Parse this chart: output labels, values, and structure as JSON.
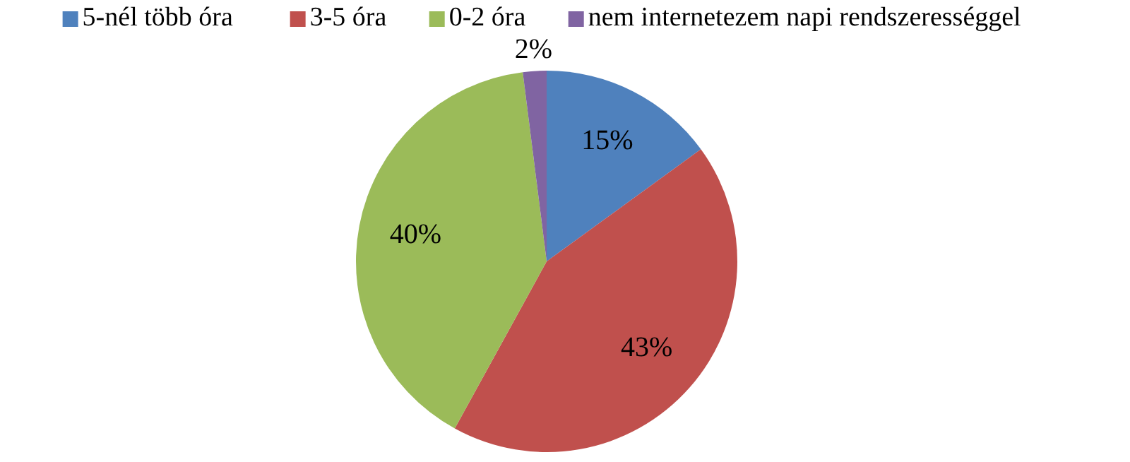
{
  "chart_data": {
    "type": "pie",
    "categories": [
      "5-nél több óra",
      "3-5 óra",
      "0-2 óra",
      "nem internetezem napi rendszerességgel"
    ],
    "values": [
      15,
      43,
      40,
      2
    ],
    "colors": [
      "#4f81bd",
      "#c0504d",
      "#9bbb59",
      "#8064a2"
    ],
    "value_labels": [
      "15%",
      "43%",
      "40%",
      "2%"
    ],
    "legend": "top"
  }
}
